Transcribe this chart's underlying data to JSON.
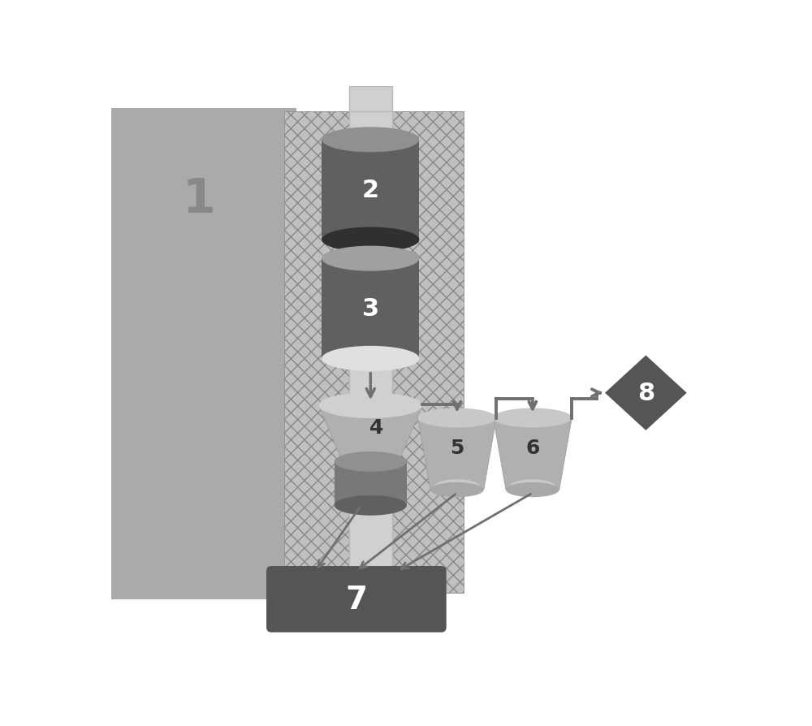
{
  "bg": "#ffffff",
  "block1_color": "#aaaaaa",
  "block1_label_color": "#888888",
  "texture_bg": "#c0c0c0",
  "texture_hatch_color": "#888888",
  "pipe_color": "#d0d0d0",
  "pipe_edge": "#b8b8b8",
  "cyl2_body": "#606060",
  "cyl2_top": "#909090",
  "cyl2_bot": "#303030",
  "cyl3_body": "#606060",
  "cyl3_top": "#a0a0a0",
  "cyl3_bot": "#e0e0e0",
  "funnel4_body": "#b0b0b0",
  "funnel4_top_ell": "#d0d0d0",
  "funnel4_inner": "#c8c8c8",
  "cyl4_body": "#787878",
  "cyl4_bot": "#606060",
  "vessel5_body": "#b0b0b0",
  "vessel5_top_ell": "#c8c8c8",
  "vessel5_inner": "#c8c8c8",
  "vessel6_body": "#b0b0b0",
  "vessel6_top_ell": "#c8c8c8",
  "vessel6_inner": "#c8c8c8",
  "box7_color": "#555555",
  "diamond8_color": "#555555",
  "arrow_color": "#707070",
  "pipe_line_color": "#707070",
  "label_white": "#ffffff",
  "label_dark": "#333333"
}
